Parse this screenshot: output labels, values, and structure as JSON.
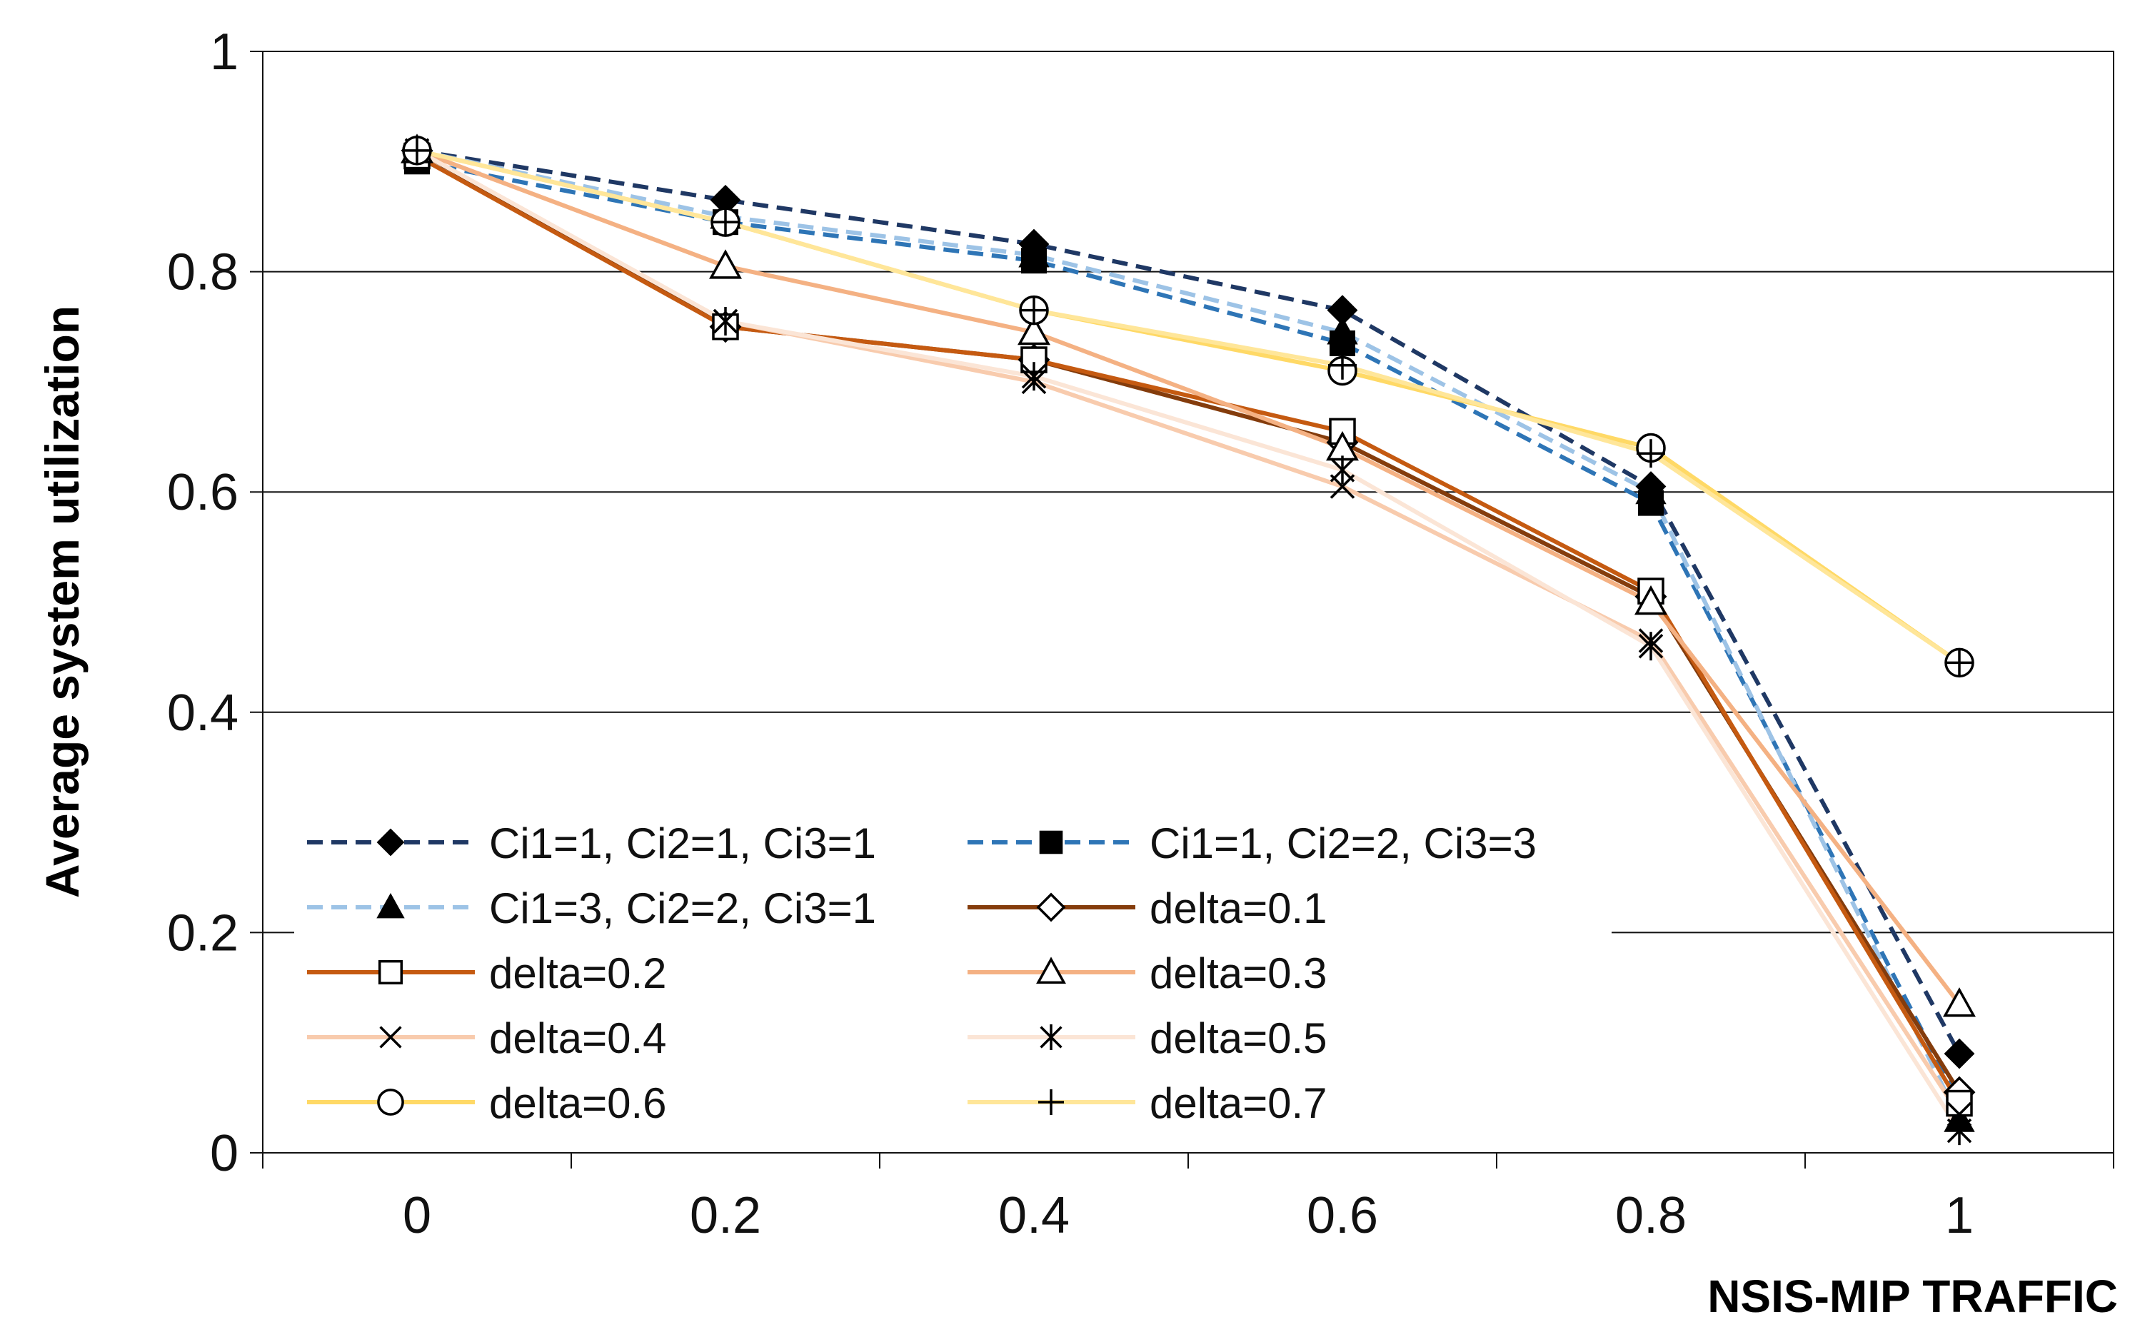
{
  "chart_data": {
    "type": "line",
    "title": "",
    "xlabel": "NSIS-MIP TRAFFIC",
    "ylabel": "Average system utilization",
    "x": [
      0,
      0.2,
      0.4,
      0.6,
      0.8,
      1
    ],
    "x_tick_labels": [
      "0",
      "0.2",
      "0.4",
      "0.6",
      "0.8",
      "1"
    ],
    "y_tick_labels": [
      "0",
      "0.2",
      "0.4",
      "0.6",
      "0.8",
      "1"
    ],
    "xlim": [
      -0.1,
      1.1
    ],
    "ylim": [
      0,
      1
    ],
    "grid": "horizontal",
    "legend_position": "bottom-left",
    "series": [
      {
        "name": "Ci1=1, Ci2=1, Ci3=1",
        "values": [
          0.91,
          0.865,
          0.825,
          0.765,
          0.605,
          0.09
        ],
        "color": "#1f3864",
        "dash": "dashed",
        "marker": "diamond-filled"
      },
      {
        "name": "Ci1=1, Ci2=2, Ci3=3",
        "values": [
          0.9,
          0.845,
          0.81,
          0.735,
          0.59,
          0.045
        ],
        "color": "#2e75b6",
        "dash": "dashed",
        "marker": "square-filled"
      },
      {
        "name": "Ci1=3, Ci2=2, Ci3=1",
        "values": [
          0.91,
          0.85,
          0.815,
          0.745,
          0.6,
          0.03
        ],
        "color": "#9dc3e6",
        "dash": "dashed",
        "marker": "triangle-filled"
      },
      {
        "name": "delta=0.1",
        "values": [
          0.91,
          0.75,
          0.72,
          0.645,
          0.505,
          0.055
        ],
        "color": "#843c0c",
        "dash": "solid",
        "marker": "diamond-open"
      },
      {
        "name": "delta=0.2",
        "values": [
          0.905,
          0.75,
          0.72,
          0.655,
          0.51,
          0.045
        ],
        "color": "#c55a11",
        "dash": "solid",
        "marker": "square-open"
      },
      {
        "name": "delta=0.3",
        "values": [
          0.91,
          0.805,
          0.745,
          0.64,
          0.5,
          0.135
        ],
        "color": "#f4b183",
        "dash": "solid",
        "marker": "triangle-open"
      },
      {
        "name": "delta=0.4",
        "values": [
          0.91,
          0.755,
          0.7,
          0.605,
          0.465,
          0.035
        ],
        "color": "#f8cbad",
        "dash": "solid",
        "marker": "x"
      },
      {
        "name": "delta=0.5",
        "values": [
          0.91,
          0.755,
          0.705,
          0.62,
          0.46,
          0.02
        ],
        "color": "#fbe5d6",
        "dash": "solid",
        "marker": "asterisk"
      },
      {
        "name": "delta=0.6",
        "values": [
          0.91,
          0.845,
          0.765,
          0.71,
          0.64,
          0.445
        ],
        "color": "#ffd966",
        "dash": "solid",
        "marker": "circle-open"
      },
      {
        "name": "delta=0.7",
        "values": [
          0.91,
          0.845,
          0.765,
          0.715,
          0.635,
          0.445
        ],
        "color": "#ffe699",
        "dash": "solid",
        "marker": "plus"
      }
    ]
  }
}
